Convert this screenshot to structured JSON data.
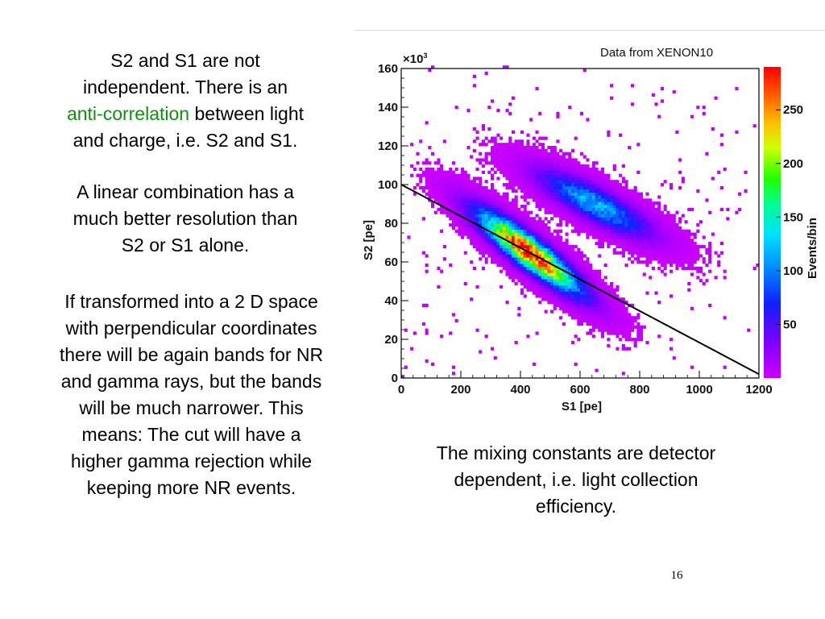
{
  "slide": {
    "para1": {
      "line1": "S2 and S1 are not",
      "line2": "independent. There is an",
      "highlight": "anti-correlation",
      "line3_rest": " between light",
      "line4": "and charge, i.e. S2 and S1."
    },
    "para2": {
      "line1": "A linear combination has a",
      "line2": "much better resolution than",
      "line3": "S2 or S1 alone."
    },
    "para3": {
      "line1": "If transformed into a 2 D space",
      "line2": "with perpendicular coordinates",
      "line3": "there will be again bands for NR",
      "line4": "and gamma rays, but the bands",
      "line5": "will be much narrower. This",
      "line6": "means: The cut will have a",
      "line7": "higher gamma rejection while",
      "line8": "keeping more NR events."
    },
    "caption": {
      "line1": "The mixing constants are detector",
      "line2": "dependent, i.e. light collection",
      "line3": "efficiency."
    },
    "slide_number": "16",
    "highlight_color": "#109010"
  },
  "chart_data": {
    "type": "heatmap",
    "source_note": "Data from XENON10",
    "xlabel": "S1 [pe]",
    "ylabel": "S2 [pe]",
    "y_exponent_label": "×10",
    "y_exponent_power": "3",
    "xlim": [
      0,
      1200
    ],
    "ylim": [
      0,
      160
    ],
    "xticks": [
      0,
      200,
      400,
      600,
      800,
      1000,
      1200
    ],
    "yticks": [
      0,
      20,
      40,
      60,
      80,
      100,
      120,
      140,
      160
    ],
    "colorbar": {
      "title": "Events/bin",
      "range": [
        0,
        290
      ],
      "ticks": [
        50,
        100,
        150,
        200,
        250
      ]
    },
    "clusters": [
      {
        "name": "",
        "center_s1": 430,
        "center_s2": 65,
        "peak": 290,
        "slope": -0.11,
        "sigma_along_s1": 110,
        "sigma_perp_s2": 6
      },
      {
        "name": "",
        "center_s1": 650,
        "center_s2": 90,
        "peak": 120,
        "slope": -0.075,
        "sigma_along_s1": 120,
        "sigma_perp_s2": 6
      }
    ],
    "cut_line": {
      "x": [
        0,
        1200
      ],
      "y": [
        100,
        2
      ]
    },
    "grid": false,
    "legend": "none"
  }
}
